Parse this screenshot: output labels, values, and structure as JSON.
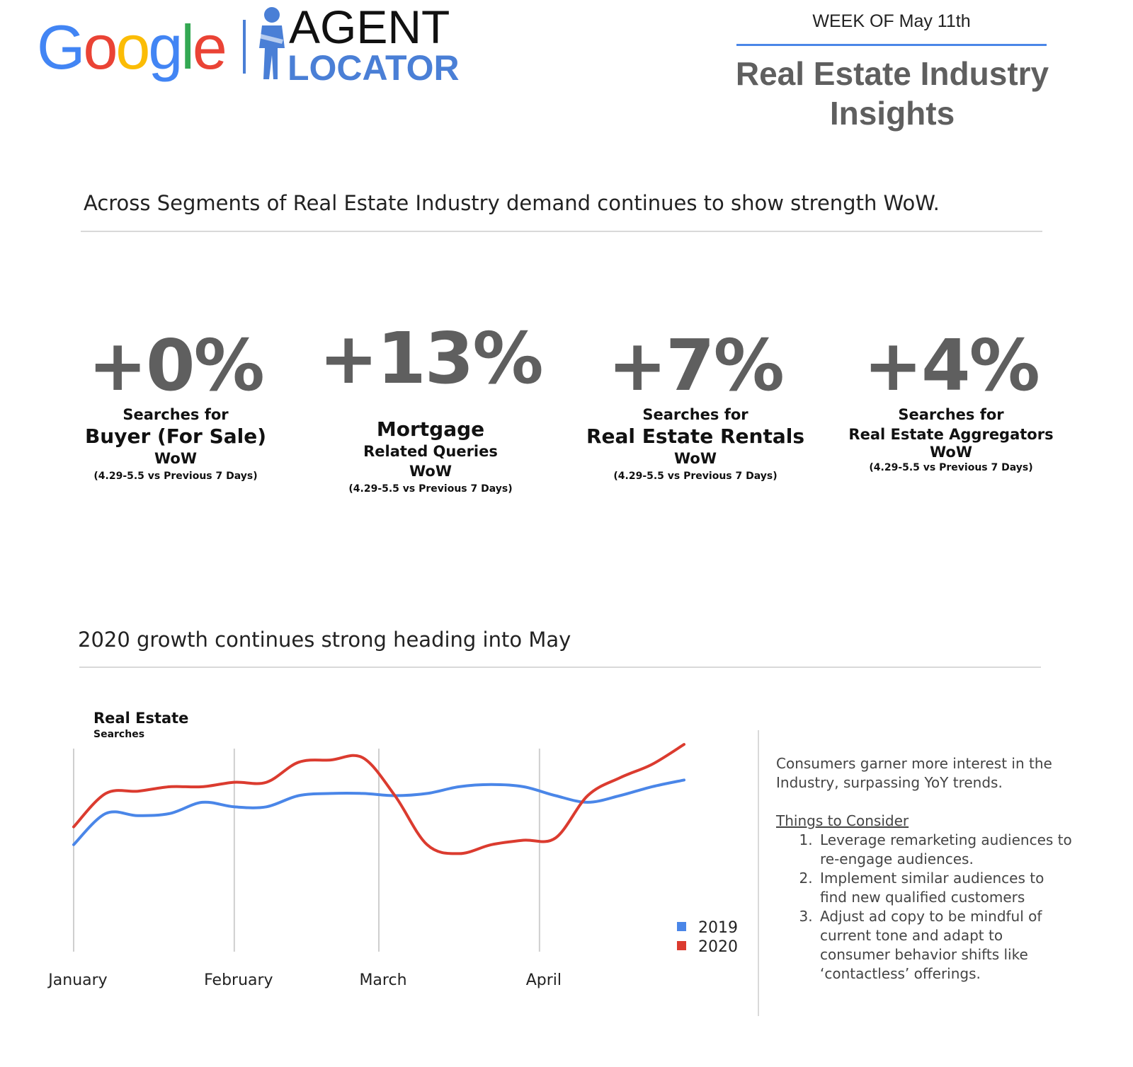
{
  "header": {
    "logo_letters": [
      {
        "ch": "G",
        "color": "#4285F4"
      },
      {
        "ch": "o",
        "color": "#EA4335"
      },
      {
        "ch": "o",
        "color": "#FBBC05"
      },
      {
        "ch": "g",
        "color": "#4285F4"
      },
      {
        "ch": "l",
        "color": "#34A853"
      },
      {
        "ch": "e",
        "color": "#EA4335"
      }
    ],
    "brand_line1": "AGENT",
    "brand_line2": "LOCATOR",
    "week": "WEEK OF May 11th",
    "title": "Real Estate Industry Insights"
  },
  "section1": {
    "heading": "Across Segments of Real Estate Industry demand continues to show strength WoW."
  },
  "stats": [
    {
      "value": "+0%",
      "line1": "Searches for",
      "line2": "Buyer (For Sale)",
      "line3": "WoW",
      "note": "(4.29-5.5 vs Previous 7 Days)"
    },
    {
      "value": "+13%",
      "line1": "Mortgage",
      "line2": "Related Queries",
      "line3": "WoW",
      "note": "(4.29-5.5 vs Previous 7 Days)"
    },
    {
      "value": "+7%",
      "line1": "Searches for",
      "line2": "Real Estate Rentals",
      "line3": "WoW",
      "note": "(4.29-5.5 vs Previous 7 Days)"
    },
    {
      "value": "+4%",
      "line1": "Searches for",
      "line2": "Real Estate Aggregators",
      "line3": "WoW",
      "note": "(4.29-5.5 vs Previous 7 Days)"
    }
  ],
  "section2": {
    "heading": "2020 growth continues strong heading into May"
  },
  "chart_data": {
    "type": "line",
    "title": "Real Estate",
    "subtitle": "Searches",
    "x_labels": [
      "January",
      "February",
      "March",
      "April"
    ],
    "x_label_positions": [
      0.0,
      1.0,
      1.9,
      2.9
    ],
    "xlim": [
      0,
      3.8
    ],
    "ylim": [
      0,
      100
    ],
    "grid": "vertical",
    "legend_position": "bottom-right",
    "series": [
      {
        "name": "2019",
        "color": "#4A86E8",
        "x": [
          0,
          0.2,
          0.4,
          0.6,
          0.8,
          1.0,
          1.2,
          1.4,
          1.6,
          1.8,
          2.0,
          2.2,
          2.4,
          2.6,
          2.8,
          3.0,
          3.2,
          3.4,
          3.6,
          3.8
        ],
        "y": [
          48,
          62,
          61,
          62,
          67,
          65,
          65,
          70,
          71,
          71,
          70,
          71,
          74,
          75,
          74,
          70,
          67,
          70,
          74,
          77
        ]
      },
      {
        "name": "2020",
        "color": "#DB3B2F",
        "x": [
          0,
          0.2,
          0.4,
          0.6,
          0.8,
          1.0,
          1.2,
          1.4,
          1.6,
          1.8,
          2.0,
          2.2,
          2.4,
          2.6,
          2.8,
          3.0,
          3.2,
          3.4,
          3.6,
          3.8
        ],
        "y": [
          56,
          71,
          72,
          74,
          74,
          76,
          76,
          85,
          86,
          87,
          70,
          48,
          44,
          48,
          50,
          51,
          70,
          78,
          84,
          93
        ]
      }
    ]
  },
  "notes": {
    "intro": "Consumers garner more interest in the Industry, surpassing YoY trends.",
    "things_heading": "Things to Consider",
    "items": [
      "Leverage remarketing audiences to re-engage audiences.",
      "Implement similar audiences to find new qualified customers",
      "Adjust ad copy to be mindful of current tone and adapt to consumer behavior shifts like ‘contactless’ offerings."
    ]
  }
}
